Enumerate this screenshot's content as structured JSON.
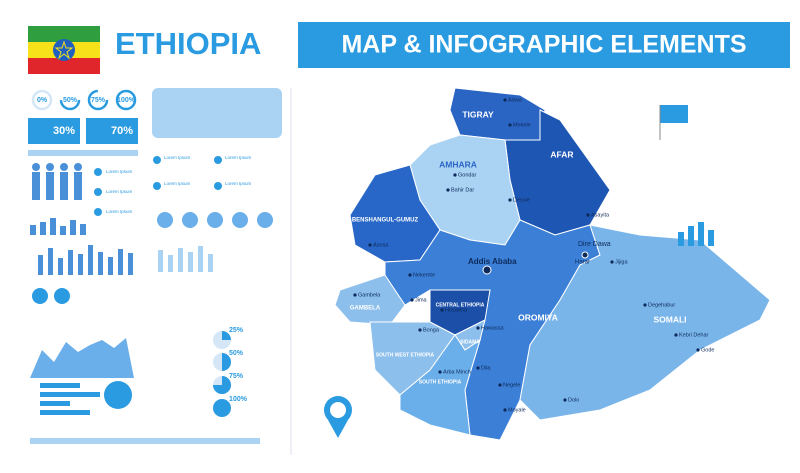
{
  "header": {
    "title": "ETHIOPIA",
    "banner": "MAP & INFOGRAPHIC ELEMENTS"
  },
  "infographic": {
    "progress_labels": [
      "0%",
      "50%",
      "75%",
      "100%"
    ],
    "people_labels": [
      "30%",
      "70%"
    ],
    "pie_labels": [
      "25%",
      "50%",
      "75%",
      "100%"
    ],
    "lorem": "Lorem Ipsum"
  },
  "map": {
    "regions": [
      "TIGRAY",
      "AFAR",
      "AMHARA",
      "BENSHANGUL-GUMUZ",
      "GAMBELA",
      "OROMIYA",
      "SOMALI",
      "CENTRAL ETHIOPIA",
      "SIDAMA",
      "SOUTH WEST ETHIOPIA",
      "SOUTH ETHIOPIA",
      "Addis Ababa",
      "Dire Dawa",
      "Harar"
    ],
    "cities": [
      "Mekele",
      "Adwa",
      "Gondar",
      "Bahir Dar",
      "Asosa",
      "Gambela",
      "Bonga",
      "Hosaena",
      "Hawassa",
      "Jijiga",
      "Asayita",
      "Dessie",
      "Jima",
      "Nekemte",
      "Dila",
      "Gode",
      "Kebri Dehar",
      "Degehabur",
      "Negele",
      "Moyale",
      "Arba Minch",
      "Dolo"
    ]
  }
}
